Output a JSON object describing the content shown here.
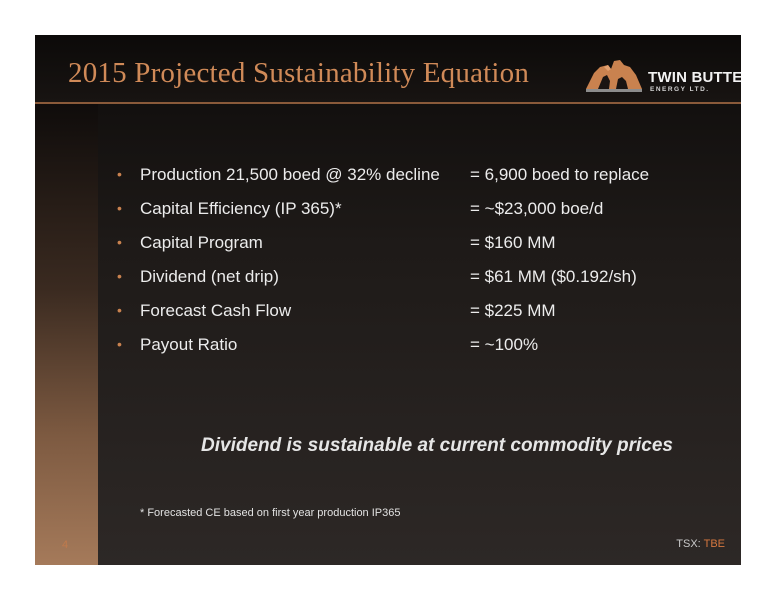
{
  "slide": {
    "title": "2015 Projected Sustainability Equation",
    "logo": {
      "name": "TWIN BUTTE",
      "subtitle": "ENERGY LTD."
    },
    "rows": [
      {
        "label": "Production 21,500 boed @ 32% decline",
        "value": "= 6,900 boed to replace"
      },
      {
        "label": "Capital Efficiency (IP 365)*",
        "value": "=  ~$23,000 boe/d"
      },
      {
        "label": "Capital Program",
        "value": "= $160 MM"
      },
      {
        "label": "Dividend (net drip)",
        "value": "= $61 MM ($0.192/sh)"
      },
      {
        "label": "Forecast Cash Flow",
        "value": "= $225 MM"
      },
      {
        "label": "Payout Ratio",
        "value": "= ~100%"
      }
    ],
    "bullet_glyph": "•",
    "tagline": "Dividend is sustainable at current commodity prices",
    "footnote": "* Forecasted CE based on first year production IP365",
    "page_number": "4",
    "ticker": {
      "prefix": "TSX: ",
      "symbol": "TBE"
    }
  },
  "colors": {
    "title": "#d08a58",
    "accent": "#c9824f",
    "text": "#ececec"
  }
}
